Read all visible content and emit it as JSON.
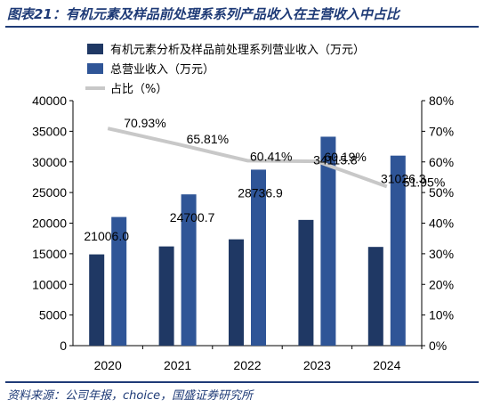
{
  "header": {
    "title": "图表21：有机元素及样品前处理系系列产品收入在主营收入中占比"
  },
  "footer": {
    "source": "资料来源：公司年报，choice，国盛证券研究所"
  },
  "colors": {
    "series1": "#1f3864",
    "series2": "#2f5597",
    "line": "#c8c8c8",
    "brand": "#1f3b77"
  },
  "chart_data": {
    "type": "bar",
    "categories": [
      "2020",
      "2021",
      "2022",
      "2023",
      "2024"
    ],
    "series": [
      {
        "name": "有机元素分析及样品前处理系列营业收入（万元）",
        "values": [
          14900,
          16200,
          17360,
          20530,
          16120
        ],
        "axis": "left",
        "kind": "bar"
      },
      {
        "name": "总营业收入（万元）",
        "values": [
          21006.0,
          24700.7,
          28736.9,
          34115.8,
          31026.3
        ],
        "axis": "left",
        "kind": "bar",
        "data_labels": [
          "21006.0",
          "24700.7",
          "28736.9",
          "34115.8",
          "31026.3"
        ]
      },
      {
        "name": "占比（%）",
        "values": [
          70.93,
          65.81,
          60.41,
          60.19,
          51.95
        ],
        "axis": "right",
        "kind": "line",
        "data_labels": [
          "70.93%",
          "65.81%",
          "60.41%",
          "60.19%",
          "51.95%"
        ]
      }
    ],
    "ylim": [
      0,
      40000
    ],
    "y_ticks": [
      "0",
      "5000",
      "10000",
      "15000",
      "20000",
      "25000",
      "30000",
      "35000",
      "40000"
    ],
    "y2lim": [
      0,
      80
    ],
    "y2_ticks": [
      "0%",
      "10%",
      "20%",
      "30%",
      "40%",
      "50%",
      "60%",
      "70%",
      "80%"
    ],
    "legend_position": "top-left",
    "grid": false
  }
}
